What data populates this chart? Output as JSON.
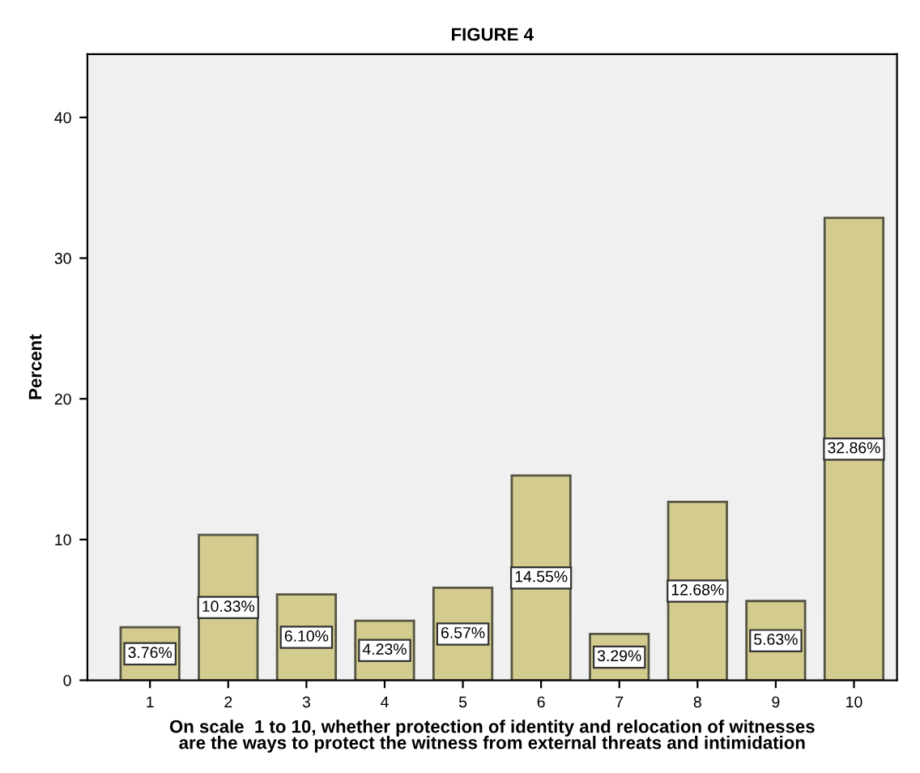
{
  "chart_data": {
    "type": "bar",
    "title": "FIGURE 4",
    "xlabel": "On scale  1 to 10, whether protection of identity and relocation of witnesses\nare the ways to protect the witness from external threats and intimidation",
    "ylabel": "Percent",
    "categories": [
      "1",
      "2",
      "3",
      "4",
      "5",
      "6",
      "7",
      "8",
      "9",
      "10"
    ],
    "values": [
      3.76,
      10.33,
      6.1,
      4.23,
      6.57,
      14.55,
      3.29,
      12.68,
      5.63,
      32.86
    ],
    "value_labels": [
      "3.76%",
      "10.33%",
      "6.10%",
      "4.23%",
      "6.57%",
      "14.55%",
      "3.29%",
      "12.68%",
      "5.63%",
      "32.86%"
    ],
    "color": "#d4cc8f",
    "ylim": [
      0,
      44.5
    ],
    "yticks": [
      0,
      10,
      20,
      30,
      40
    ],
    "grid": false,
    "legend": false
  }
}
